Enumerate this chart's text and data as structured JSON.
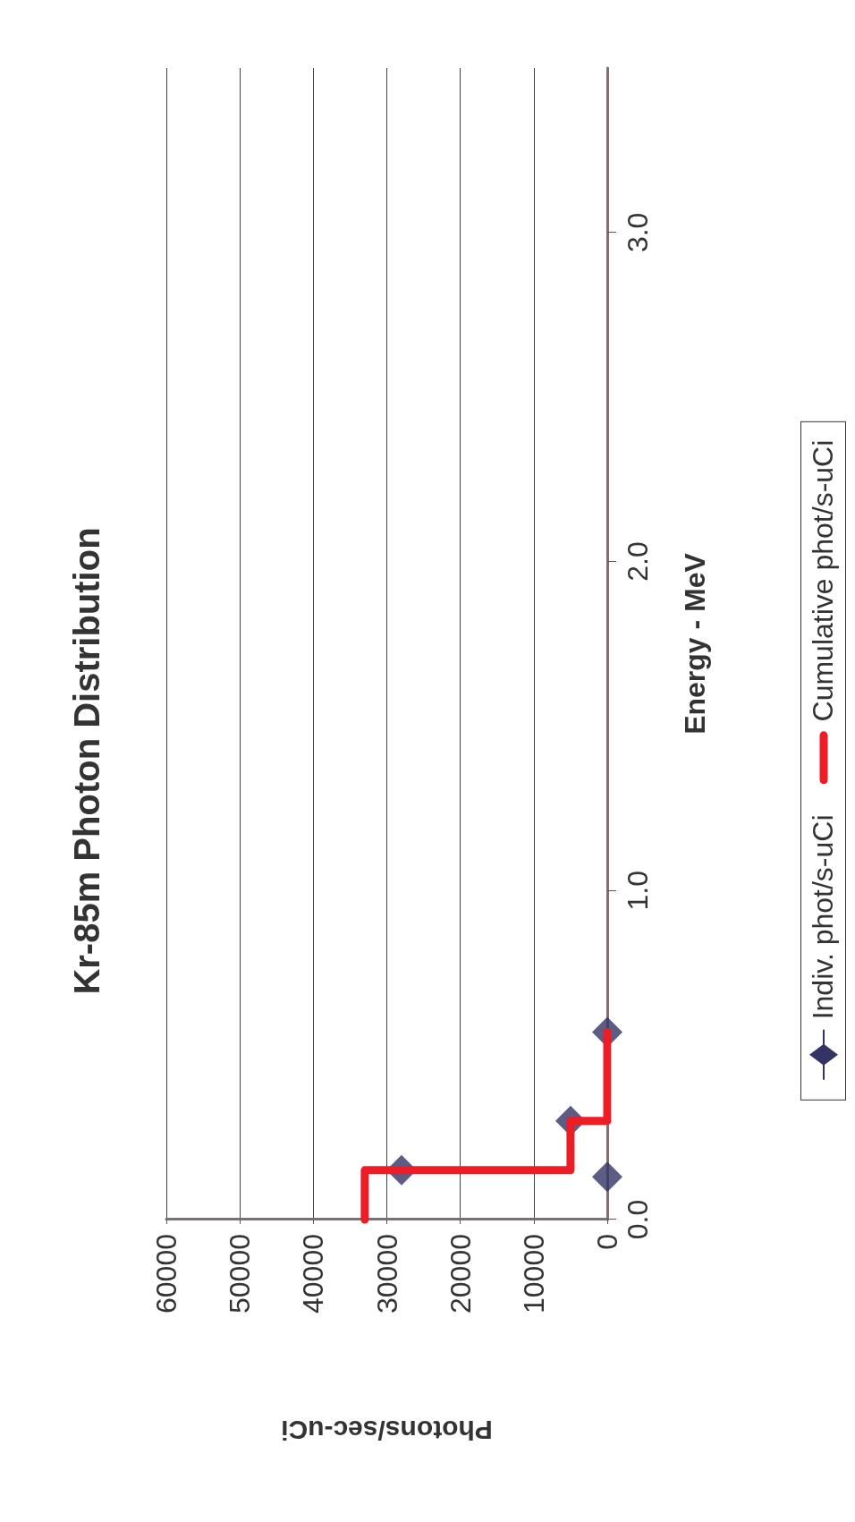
{
  "chart_data": {
    "type": "scatter",
    "title": "Kr-85m Photon Distribution",
    "xlabel": "Photons/sec-uCi",
    "ylabel": "Energy - MeV",
    "xlim": [
      60000,
      0
    ],
    "xticks": [
      60000,
      50000,
      40000,
      30000,
      20000,
      10000,
      0
    ],
    "ylim": [
      0,
      3.5
    ],
    "yticks": [
      {
        "value": 0,
        "label": "0.0"
      },
      {
        "value": 1,
        "label": "1.0"
      },
      {
        "value": 2,
        "label": "2.0"
      },
      {
        "value": 3,
        "label": "3.0"
      }
    ],
    "grid": "x",
    "legend": "right",
    "series": [
      {
        "name": "Indiv. phot/s-uCi",
        "color": "#333366",
        "marker": "diamond",
        "x": [
          0,
          28000,
          5000,
          0
        ],
        "values": [
          0.13,
          0.15,
          0.3,
          0.57
        ]
      },
      {
        "name": "Cumulative phot/s-uCi",
        "type": "line",
        "color": "#ee1c25",
        "marker": "none",
        "x": [
          33000,
          33000,
          5000,
          5000,
          0,
          0
        ],
        "values": [
          0,
          0.15,
          0.15,
          0.3,
          0.3,
          0.57
        ]
      }
    ]
  }
}
